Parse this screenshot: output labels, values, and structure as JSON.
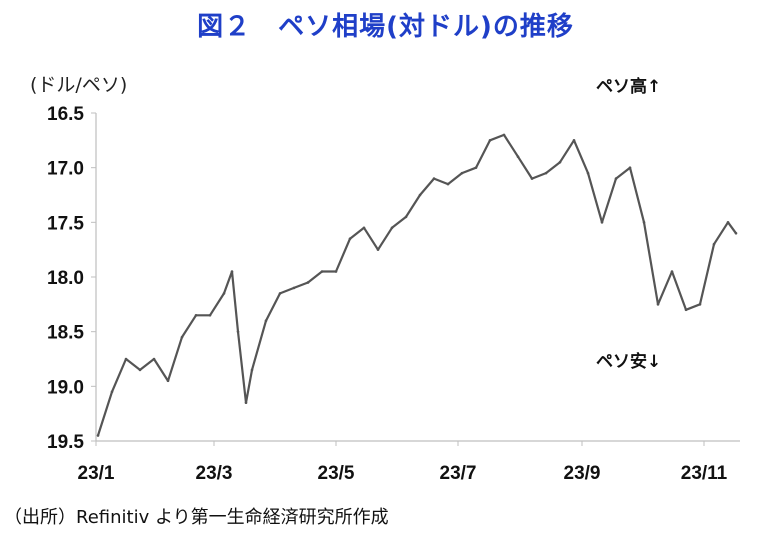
{
  "title": "図２　ペソ相場(対ドル)の推移",
  "source": "（出所）Refinitiv より第一生命経済研究所作成",
  "annotations": {
    "up": "ペソ高↑",
    "down": "ペソ安↓"
  },
  "colors": {
    "title": "#1f3fc8",
    "line": "#555555",
    "axis": "#bfbfbf"
  },
  "chart_data": {
    "type": "line",
    "title": "図２　ペソ相場(対ドル)の推移",
    "ylabel": "(ドル/ペソ)",
    "xlabel": "",
    "y_inverted": true,
    "ylim": [
      16.5,
      19.5
    ],
    "yticks": [
      "16.5",
      "17.0",
      "17.5",
      "18.0",
      "18.5",
      "19.0",
      "19.5"
    ],
    "xticks": [
      "23/1",
      "23/3",
      "23/5",
      "23/7",
      "23/9",
      "23/11"
    ],
    "grid": false,
    "series": [
      {
        "x": [
          "2023-01-02",
          "2023-01-09",
          "2023-01-16",
          "2023-01-23",
          "2023-01-30",
          "2023-02-06",
          "2023-02-13",
          "2023-02-20",
          "2023-02-27",
          "2023-03-06",
          "2023-03-10",
          "2023-03-13",
          "2023-03-17",
          "2023-03-20",
          "2023-03-27",
          "2023-04-03",
          "2023-04-10",
          "2023-04-17",
          "2023-04-24",
          "2023-05-01",
          "2023-05-08",
          "2023-05-15",
          "2023-05-22",
          "2023-05-29",
          "2023-06-05",
          "2023-06-12",
          "2023-06-19",
          "2023-06-26",
          "2023-07-03",
          "2023-07-10",
          "2023-07-17",
          "2023-07-24",
          "2023-07-31",
          "2023-08-07",
          "2023-08-14",
          "2023-08-21",
          "2023-08-28",
          "2023-09-04",
          "2023-09-11",
          "2023-09-18",
          "2023-09-25",
          "2023-10-02",
          "2023-10-09",
          "2023-10-16",
          "2023-10-23",
          "2023-10-30",
          "2023-11-06",
          "2023-11-13",
          "2023-11-17"
        ],
        "values": [
          19.45,
          19.05,
          18.75,
          18.85,
          18.75,
          18.95,
          18.55,
          18.35,
          18.35,
          18.15,
          17.95,
          18.5,
          19.15,
          18.85,
          18.4,
          18.15,
          18.1,
          18.05,
          17.95,
          17.95,
          17.65,
          17.55,
          17.75,
          17.55,
          17.45,
          17.25,
          17.1,
          17.15,
          17.05,
          17.0,
          16.75,
          16.7,
          16.9,
          17.1,
          17.05,
          16.95,
          16.75,
          17.05,
          17.5,
          17.1,
          17.0,
          17.5,
          18.25,
          17.95,
          18.3,
          18.25,
          17.7,
          17.5,
          17.6
        ]
      }
    ]
  }
}
